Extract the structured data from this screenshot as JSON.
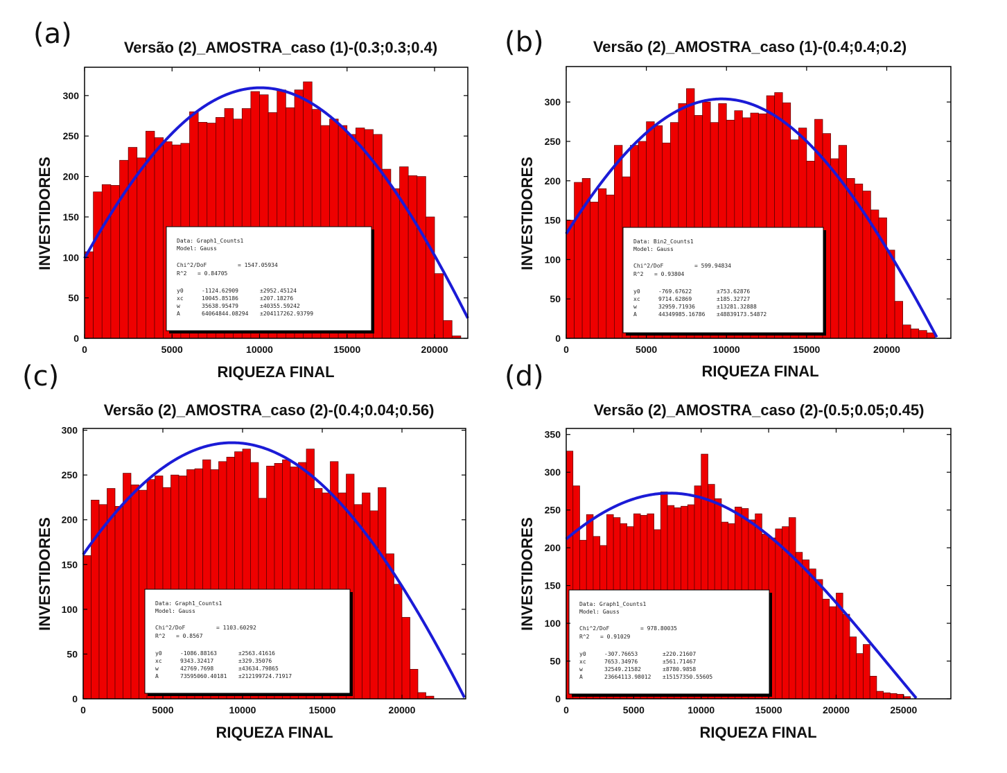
{
  "colors": {
    "bar": "#ee0000",
    "bar_edge": "#550000",
    "fit": "#1b1bd6",
    "frame": "#000000"
  },
  "chart_data": [
    {
      "letter": "(a)",
      "type": "bar",
      "title": "Versão (2)_AMOSTRA_caso (1)-(0.3;0.3;0.4)",
      "xlabel": "RIQUEZA FINAL",
      "ylabel": "INVESTIDORES",
      "xlim": [
        0,
        21900
      ],
      "ylim": [
        0,
        335
      ],
      "xticks": [
        0,
        5000,
        10000,
        15000,
        20000
      ],
      "yticks": [
        0,
        50,
        100,
        150,
        200,
        250,
        300
      ],
      "grid": false,
      "bin_start": 0,
      "bin_width": 500,
      "values": [
        107,
        181,
        190,
        189,
        220,
        236,
        223,
        256,
        248,
        243,
        239,
        241,
        280,
        267,
        266,
        273,
        284,
        271,
        284,
        305,
        301,
        279,
        307,
        285,
        307,
        317,
        283,
        263,
        271,
        263,
        252,
        260,
        258,
        252,
        209,
        185,
        212,
        201,
        200,
        150,
        80,
        22,
        3
      ],
      "fit": {
        "y0": -1124.62909,
        "xc": 10045.85186,
        "w": 35638.95479,
        "A": 64064844.08294
      },
      "fit_box": {
        "data": "Data: Graph1_Counts1",
        "model": "Model: Gauss",
        "chi2_label": "Chi^2/DoF",
        "chi2": "= 1547.05934",
        "r2_label": "R^2",
        "r2": "= 0.84705",
        "params": [
          {
            "name": "y0",
            "value": "-1124.62909",
            "err": "±2952.45124"
          },
          {
            "name": "xc",
            "value": "10045.85186",
            "err": "±207.18276"
          },
          {
            "name": "w",
            "value": "35638.95479",
            "err": "±40355.59242"
          },
          {
            "name": "A",
            "value": "64064844.08294",
            "err": "±204117262.93799"
          }
        ]
      }
    },
    {
      "letter": "(b)",
      "type": "bar",
      "title": "Versão (2)_AMOSTRA_caso (1)-(0.4;0.4;0.2)",
      "xlabel": "RIQUEZA FINAL",
      "ylabel": "INVESTIDORES",
      "xlim": [
        0,
        24000
      ],
      "ylim": [
        0,
        345
      ],
      "xticks": [
        0,
        5000,
        10000,
        15000,
        20000
      ],
      "yticks": [
        0,
        50,
        100,
        150,
        200,
        250,
        300
      ],
      "grid": false,
      "bin_start": 0,
      "bin_width": 500,
      "values": [
        150,
        198,
        203,
        173,
        190,
        182,
        245,
        205,
        245,
        250,
        275,
        270,
        248,
        274,
        298,
        317,
        283,
        300,
        274,
        298,
        277,
        289,
        280,
        286,
        285,
        308,
        312,
        299,
        252,
        267,
        225,
        278,
        260,
        228,
        245,
        203,
        196,
        187,
        163,
        153,
        112,
        47,
        17,
        12,
        10,
        7
      ],
      "fit": {
        "y0": -769.67622,
        "xc": 9714.62869,
        "w": 32959.71936,
        "A": 44349985.16786
      },
      "fit_box": {
        "data": "Data: Bin2_Counts1",
        "model": "Model: Gauss",
        "chi2_label": "Chi^2/DoF",
        "chi2": "= 599.94834",
        "r2_label": "R^2",
        "r2": "= 0.93804",
        "params": [
          {
            "name": "y0",
            "value": "-769.67622",
            "err": "±753.62876"
          },
          {
            "name": "xc",
            "value": "9714.62869",
            "err": "±185.32727"
          },
          {
            "name": "w",
            "value": "32959.71936",
            "err": "±13281.32888"
          },
          {
            "name": "A",
            "value": "44349985.16786",
            "err": "±48839173.54872"
          }
        ]
      }
    },
    {
      "letter": "(c)",
      "type": "bar",
      "title": "Versão (2)_AMOSTRA_caso (2)-(0.4;0.04;0.56)",
      "xlabel": "RIQUEZA FINAL",
      "ylabel": "INVESTIDORES",
      "xlim": [
        0,
        24000
      ],
      "ylim": [
        0,
        302
      ],
      "xticks": [
        0,
        5000,
        10000,
        15000,
        20000
      ],
      "yticks": [
        0,
        50,
        100,
        150,
        200,
        250,
        300
      ],
      "grid": false,
      "bin_start": 0,
      "bin_width": 500,
      "values": [
        160,
        222,
        217,
        235,
        215,
        252,
        239,
        233,
        245,
        249,
        236,
        250,
        249,
        256,
        257,
        267,
        256,
        265,
        270,
        276,
        279,
        264,
        224,
        260,
        263,
        267,
        259,
        264,
        279,
        235,
        230,
        265,
        230,
        251,
        217,
        230,
        210,
        236,
        162,
        128,
        91,
        33,
        7,
        3
      ],
      "fit": {
        "y0": -1086.88163,
        "xc": 9343.32417,
        "w": 42769.7698,
        "A": 73595060.40181
      },
      "fit_box": {
        "data": "Data: Graph1_Counts1",
        "model": "Model: Gauss",
        "chi2_label": "Chi^2/DoF",
        "chi2": "= 1103.60292",
        "r2_label": "R^2",
        "r2": "= 0.8567",
        "params": [
          {
            "name": "y0",
            "value": "-1086.88163",
            "err": "±2563.41616"
          },
          {
            "name": "xc",
            "value": "9343.32417",
            "err": "±329.35076"
          },
          {
            "name": "w",
            "value": "42769.7698",
            "err": "±43634.79865"
          },
          {
            "name": "A",
            "value": "73595060.40181",
            "err": "±212199724.71917"
          }
        ]
      }
    },
    {
      "letter": "(d)",
      "type": "bar",
      "title": "Versão (2)_AMOSTRA_caso (2)-(0.5;0.05;0.45)",
      "xlabel": "RIQUEZA FINAL",
      "ylabel": "INVESTIDORES",
      "xlim": [
        0,
        28500
      ],
      "ylim": [
        0,
        358
      ],
      "xticks": [
        0,
        5000,
        10000,
        15000,
        20000,
        25000
      ],
      "yticks": [
        0,
        50,
        100,
        150,
        200,
        250,
        300,
        350
      ],
      "grid": false,
      "bin_start": 0,
      "bin_width": 500,
      "values": [
        328,
        282,
        210,
        244,
        215,
        203,
        244,
        240,
        232,
        228,
        245,
        243,
        245,
        224,
        274,
        256,
        253,
        255,
        257,
        282,
        324,
        284,
        265,
        234,
        232,
        254,
        252,
        237,
        245,
        218,
        213,
        225,
        228,
        240,
        194,
        184,
        172,
        158,
        132,
        122,
        140,
        112,
        82,
        60,
        72,
        30,
        10,
        8,
        7,
        6,
        3
      ],
      "fit": {
        "y0": -307.76653,
        "xc": 7653.34976,
        "w": 32549.21582,
        "A": 23664113.98012
      },
      "fit_box": {
        "data": "Data: Graph1_Counts1",
        "model": "Model: Gauss",
        "chi2_label": "Chi^2/DoF",
        "chi2": "= 978.80035",
        "r2_label": "R^2",
        "r2": "= 0.91029",
        "params": [
          {
            "name": "y0",
            "value": "-307.76653",
            "err": "±220.21607"
          },
          {
            "name": "xc",
            "value": "7653.34976",
            "err": "±561.71467"
          },
          {
            "name": "w",
            "value": "32549.21582",
            "err": "±8780.9858"
          },
          {
            "name": "A",
            "value": "23664113.98012",
            "err": "±15157350.55605"
          }
        ]
      }
    }
  ]
}
